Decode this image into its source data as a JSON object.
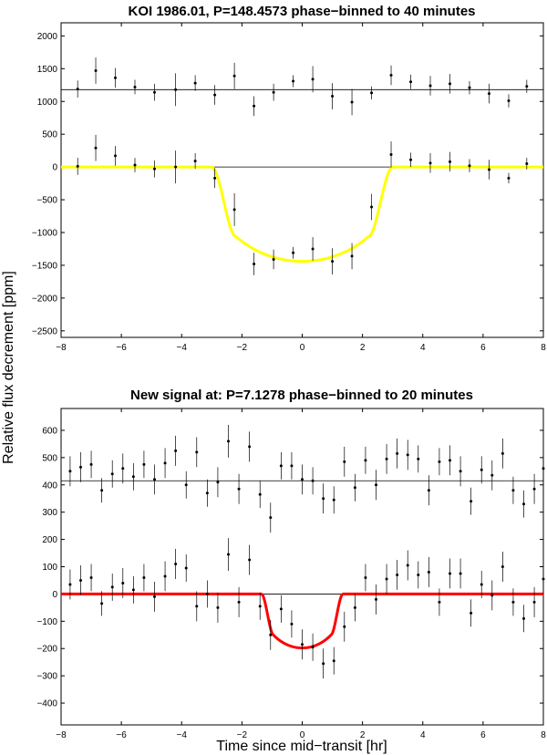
{
  "figure": {
    "ylabel": "Relative flux decrement [ppm]",
    "xlabel": "Time since mid−transit [hr]"
  },
  "chart_data": [
    {
      "type": "scatter",
      "title": "KOI 1986.01, P=148.4573 phase−binned to 40 minutes",
      "xlim": [
        -8,
        8
      ],
      "ylim": [
        -2600,
        2200
      ],
      "xticks": [
        -8,
        -6,
        -4,
        -2,
        0,
        2,
        4,
        6,
        8
      ],
      "yticks": [
        -2500,
        -2000,
        -1500,
        -1000,
        -500,
        0,
        500,
        1000,
        1500,
        2000
      ],
      "grid": false,
      "ref_lines": [
        1180,
        0
      ],
      "series": [
        {
          "kind": "points_with_errorbars",
          "x": [
            -7.45,
            -6.85,
            -6.2,
            -5.55,
            -4.9,
            -4.2,
            -3.55,
            -2.9,
            -2.25,
            -1.6,
            -0.95,
            -0.3,
            0.35,
            1.0,
            1.65,
            2.3,
            2.95,
            3.6,
            4.25,
            4.9,
            5.55,
            6.2,
            6.85,
            7.45
          ],
          "y": [
            1190,
            1470,
            1360,
            1220,
            1140,
            1180,
            1280,
            1100,
            1390,
            930,
            1140,
            1310,
            1340,
            1080,
            990,
            1130,
            1400,
            1300,
            1240,
            1270,
            1210,
            1120,
            1010,
            1230
          ],
          "err": [
            130,
            200,
            150,
            110,
            130,
            250,
            120,
            150,
            200,
            150,
            130,
            90,
            200,
            200,
            200,
            100,
            150,
            110,
            150,
            150,
            100,
            150,
            100,
            100
          ]
        },
        {
          "kind": "points_with_errorbars",
          "x": [
            -7.45,
            -6.85,
            -6.2,
            -5.55,
            -4.9,
            -4.2,
            -3.55,
            -2.9,
            -2.25,
            -1.6,
            -0.95,
            -0.3,
            0.35,
            1.0,
            1.65,
            2.3,
            2.95,
            3.6,
            4.25,
            4.9,
            5.55,
            6.2,
            6.85,
            7.45
          ],
          "y": [
            10,
            290,
            170,
            30,
            -30,
            0,
            90,
            -170,
            -650,
            -1480,
            -1410,
            -1310,
            -1250,
            -1440,
            -1360,
            -610,
            190,
            110,
            60,
            80,
            20,
            -40,
            -170,
            50
          ],
          "err": [
            130,
            200,
            150,
            110,
            130,
            250,
            120,
            150,
            250,
            170,
            150,
            90,
            180,
            200,
            200,
            200,
            200,
            110,
            150,
            150,
            100,
            150,
            80,
            90
          ]
        },
        {
          "kind": "model_line",
          "color": "#ffff00",
          "t_half": 3.0,
          "t_flat": 2.2,
          "depth": 1440,
          "inner_depth": 1000
        }
      ]
    },
    {
      "type": "scatter",
      "title": "New signal at: P=7.1278 phase−binned to 20 minutes",
      "xlim": [
        -8,
        8
      ],
      "ylim": [
        -480,
        680
      ],
      "xticks": [
        -8,
        -6,
        -4,
        -2,
        0,
        2,
        4,
        6,
        8
      ],
      "yticks": [
        -400,
        -300,
        -200,
        -100,
        0,
        100,
        200,
        300,
        400,
        500,
        600
      ],
      "grid": false,
      "ref_lines": [
        415,
        0
      ],
      "series": [
        {
          "kind": "points_with_errorbars",
          "x": [
            -7.7,
            -7.35,
            -7.0,
            -6.65,
            -6.3,
            -5.95,
            -5.6,
            -5.25,
            -4.9,
            -4.55,
            -4.2,
            -3.85,
            -3.5,
            -3.15,
            -2.8,
            -2.45,
            -2.1,
            -1.75,
            -1.4,
            -1.05,
            -0.7,
            -0.35,
            0.0,
            0.35,
            0.7,
            1.05,
            1.4,
            1.75,
            2.1,
            2.45,
            2.8,
            3.15,
            3.5,
            3.85,
            4.2,
            4.55,
            4.9,
            5.25,
            5.6,
            5.95,
            6.3,
            6.65,
            7.0,
            7.35,
            7.7,
            8.0
          ],
          "y": [
            450,
            465,
            475,
            380,
            440,
            460,
            430,
            475,
            420,
            480,
            525,
            400,
            520,
            370,
            410,
            560,
            385,
            540,
            365,
            280,
            470,
            470,
            420,
            415,
            350,
            345,
            485,
            390,
            490,
            400,
            495,
            515,
            510,
            495,
            380,
            485,
            490,
            450,
            340,
            455,
            435,
            515,
            380,
            330,
            385,
            460
          ],
          "err": [
            55,
            55,
            50,
            45,
            50,
            55,
            50,
            50,
            55,
            55,
            55,
            50,
            55,
            50,
            55,
            60,
            55,
            55,
            50,
            55,
            50,
            50,
            55,
            50,
            55,
            50,
            55,
            50,
            50,
            55,
            55,
            55,
            55,
            50,
            55,
            50,
            55,
            55,
            50,
            50,
            55,
            55,
            50,
            50,
            55,
            55
          ]
        },
        {
          "kind": "points_with_errorbars",
          "x": [
            -7.7,
            -7.35,
            -7.0,
            -6.65,
            -6.3,
            -5.95,
            -5.6,
            -5.25,
            -4.9,
            -4.55,
            -4.2,
            -3.85,
            -3.5,
            -3.15,
            -2.8,
            -2.45,
            -2.1,
            -1.75,
            -1.4,
            -1.05,
            -0.7,
            -0.35,
            0.0,
            0.35,
            0.7,
            1.05,
            1.4,
            1.75,
            2.1,
            2.45,
            2.8,
            3.15,
            3.5,
            3.85,
            4.2,
            4.55,
            4.9,
            5.25,
            5.6,
            5.95,
            6.3,
            6.65,
            7.0,
            7.35,
            7.7,
            8.0
          ],
          "y": [
            35,
            50,
            60,
            -35,
            25,
            40,
            15,
            60,
            -10,
            65,
            110,
            95,
            -45,
            0,
            -50,
            145,
            -30,
            125,
            -45,
            -150,
            -55,
            -110,
            -185,
            -195,
            -255,
            -245,
            -120,
            -50,
            60,
            -20,
            55,
            70,
            105,
            70,
            80,
            -30,
            75,
            75,
            -70,
            35,
            -5,
            100,
            -30,
            -90,
            -30,
            55
          ],
          "err": [
            55,
            55,
            50,
            45,
            50,
            55,
            50,
            50,
            55,
            55,
            55,
            50,
            55,
            50,
            55,
            60,
            55,
            55,
            50,
            55,
            50,
            50,
            55,
            50,
            55,
            50,
            55,
            50,
            50,
            55,
            55,
            55,
            55,
            50,
            55,
            50,
            55,
            55,
            50,
            50,
            55,
            55,
            50,
            50,
            55,
            55
          ]
        },
        {
          "kind": "model_line",
          "color": "#ff0000",
          "t_half": 1.35,
          "t_flat": 0.95,
          "depth": 198,
          "inner_depth": 130
        }
      ]
    }
  ]
}
